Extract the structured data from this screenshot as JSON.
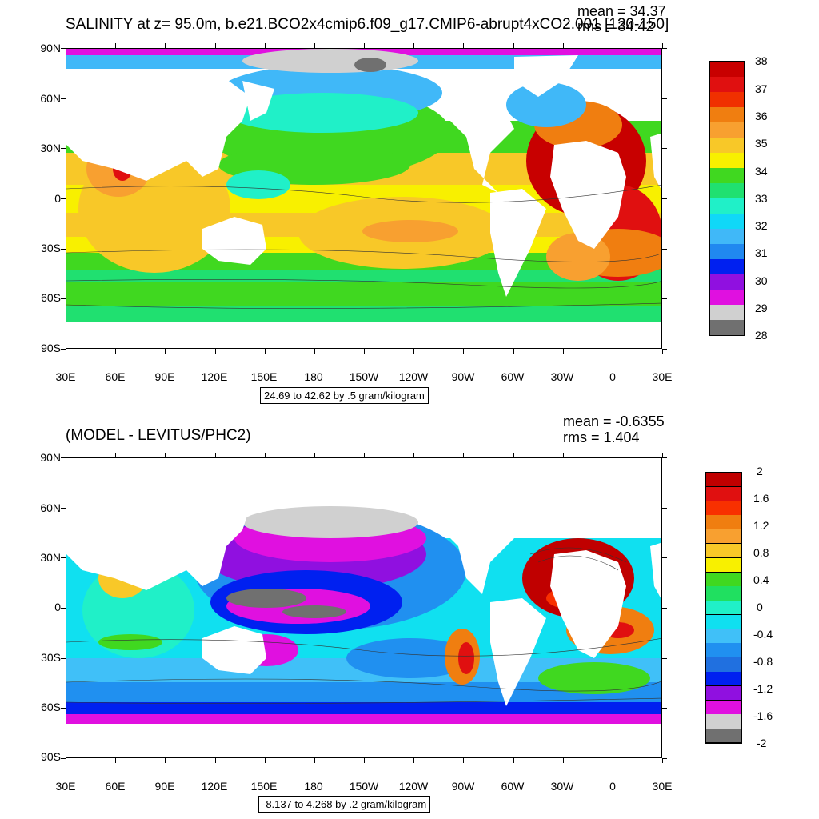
{
  "panels": [
    {
      "title": "SALINITY at z=  95.0m, b.e21.BCO2x4cmip6.f09_g17.CMIP6-abrupt4xCO2.001 [120-150]",
      "mean_text": "mean = 34.37",
      "rms_text": "rms = 34.42",
      "range_text": "24.69 to 42.62 by .5 gram/kilogram",
      "lat_labels": [
        "90N",
        "60N",
        "30N",
        "0",
        "30S",
        "60S",
        "90S"
      ],
      "lon_labels": [
        "30E",
        "60E",
        "90E",
        "120E",
        "150E",
        "180",
        "150W",
        "120W",
        "90W",
        "60W",
        "30W",
        "0",
        "30E"
      ],
      "colorbar_labels": [
        "38",
        "37",
        "36",
        "35",
        "34",
        "33",
        "32",
        "31",
        "30",
        "29",
        "28"
      ],
      "colorbar_colors": [
        "#c80000",
        "#e01010",
        "#f03000",
        "#f07e10",
        "#f8a030",
        "#f8c828",
        "#f8f000",
        "#40d820",
        "#20e070",
        "#20f0c8",
        "#10d8f8",
        "#40b8f8",
        "#2088f0",
        "#0020f0",
        "#9010e0",
        "#e010e0",
        "#d0d0d0",
        "#707070"
      ]
    },
    {
      "title": "(MODEL - LEVITUS/PHC2)",
      "mean_text": "mean = -0.6355",
      "rms_text": "rms = 1.404",
      "range_text": "-8.137 to 4.268 by .2 gram/kilogram",
      "lat_labels": [
        "90N",
        "60N",
        "30N",
        "0",
        "30S",
        "60S",
        "90S"
      ],
      "lon_labels": [
        "30E",
        "60E",
        "90E",
        "120E",
        "150E",
        "180",
        "150W",
        "120W",
        "90W",
        "60W",
        "30W",
        "0",
        "30E"
      ],
      "colorbar_labels": [
        "2",
        "1.6",
        "1.2",
        "0.8",
        "0.4",
        "0",
        "-0.4",
        "-0.8",
        "-1.2",
        "-1.6",
        "-2"
      ],
      "colorbar_colors": [
        "#c00000",
        "#e01010",
        "#f83000",
        "#f07e10",
        "#f8a030",
        "#f8c828",
        "#f8f000",
        "#40d820",
        "#20e060",
        "#20f0c8",
        "#10e0f0",
        "#40c0f8",
        "#2090f0",
        "#2070e0",
        "#0020f0",
        "#9010e0",
        "#e010e0",
        "#d0d0d0",
        "#707070"
      ]
    }
  ]
}
